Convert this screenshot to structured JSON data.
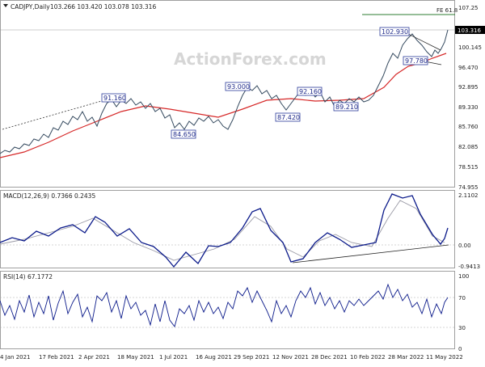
{
  "header": {
    "symbol": "CADJPY,Daily",
    "ohlc": "103.266 103.420 103.078 103.316"
  },
  "watermark": "ActionForex.com",
  "colors": {
    "price": "#34495e",
    "ema": "#d62828",
    "macd": "#0b1a8a",
    "signal": "#9a9aa6",
    "trend": "#333333",
    "fib": "#2e7d32",
    "rsi": "#0b1a8a",
    "grid": "#bbbbbb",
    "label_box": "#2a3a9a"
  },
  "price_panel": {
    "y_ticks": [
      "107.25",
      "103.316",
      "100.145",
      "96.470",
      "92.895",
      "89.330",
      "85.760",
      "82.085",
      "78.515",
      "74.955"
    ],
    "current": "103.316",
    "fib_label": "FE 61.8",
    "labels": [
      "91.160",
      "84.650",
      "93.000",
      "87.420",
      "92.160",
      "89.210",
      "102.930",
      "97.780"
    ]
  },
  "macd_panel": {
    "title": "MACD(12,26,9) 0.7366 0.2435",
    "y_ticks": [
      "2.1102",
      "0.00",
      "-0.9413"
    ]
  },
  "rsi_panel": {
    "title": "RSI(14) 67.1772",
    "y_ticks": [
      "100",
      "70",
      "30",
      "0"
    ]
  },
  "x_axis": [
    "4 Jan 2021",
    "17 Feb 2021",
    "2 Apr 2021",
    "18 May 2021",
    "1 Jul 2021",
    "16 Aug 2021",
    "29 Sep 2021",
    "12 Nov 2021",
    "28 Dec 2021",
    "10 Feb 2022",
    "28 Mar 2022",
    "11 May 2022"
  ]
}
